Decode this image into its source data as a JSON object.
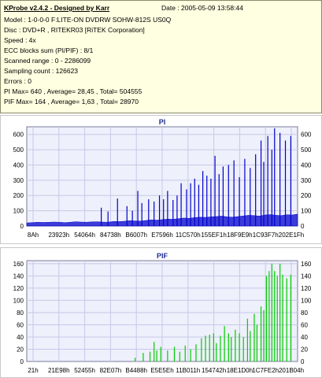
{
  "header": {
    "title": "KProbe v2.4.2 - Designed by Karr",
    "date_label": "Date : 2005-05-09 13:58:44"
  },
  "info_lines": [
    "Model : 1-0-0-0 F:LITE-ON DVDRW SOHW-812S  US0Q",
    "Disc : DVD+R , RITEKR03 [RiTEK Corporation]",
    "Speed : 4x",
    "ECC blocks sum (PI/PIF) : 8/1",
    "Scanned range : 0 - 2286099",
    "Sampling count : 126623",
    "Errors : 0",
    "PI Max= 640 , Average= 28,45 , Total= 504555",
    "PIF Max= 164 , Average= 1,63 , Total= 28970"
  ],
  "colors": {
    "info_bg": "#ffffe1",
    "plot_bg": "#eef0fb",
    "grid": "#c8c8e8",
    "pi_bar": "#0000cc",
    "pif_bar": "#00cc00",
    "title": "#1f2f8f"
  },
  "chart_data": [
    {
      "type": "bar",
      "title": "PI",
      "ylim": [
        0,
        650
      ],
      "y_ticks": [
        "0",
        "100",
        "200",
        "300",
        "400",
        "500",
        "600"
      ],
      "y_ticks_right": [
        "0",
        "100",
        "200",
        "300",
        "400",
        "500",
        "600"
      ],
      "x_tick_labels": [
        "8Ah",
        "23923h",
        "54064h",
        "84738h",
        "B6007h",
        "E7596h",
        "11C570h",
        "155EF1h",
        "18F9E9h",
        "1C93F7h",
        "202E1Fh"
      ],
      "grid": true,
      "baseline": [
        20,
        22,
        25,
        23,
        24,
        26,
        25,
        22,
        24,
        28,
        26,
        25,
        27,
        28,
        26,
        25,
        30,
        29,
        31,
        35,
        33,
        32,
        36,
        40,
        38,
        42,
        45,
        44,
        48,
        52,
        50,
        55,
        58,
        56,
        60,
        62,
        65,
        60,
        58,
        62,
        66,
        70,
        68,
        65,
        72,
        75,
        70,
        68,
        74,
        72,
        78
      ],
      "spikes": [
        {
          "pos": 0.275,
          "val": 120
        },
        {
          "pos": 0.3,
          "val": 95
        },
        {
          "pos": 0.335,
          "val": 180
        },
        {
          "pos": 0.37,
          "val": 130
        },
        {
          "pos": 0.39,
          "val": 100
        },
        {
          "pos": 0.41,
          "val": 230
        },
        {
          "pos": 0.425,
          "val": 150
        },
        {
          "pos": 0.45,
          "val": 175
        },
        {
          "pos": 0.47,
          "val": 160
        },
        {
          "pos": 0.49,
          "val": 200
        },
        {
          "pos": 0.505,
          "val": 175
        },
        {
          "pos": 0.52,
          "val": 230
        },
        {
          "pos": 0.54,
          "val": 170
        },
        {
          "pos": 0.555,
          "val": 200
        },
        {
          "pos": 0.57,
          "val": 280
        },
        {
          "pos": 0.59,
          "val": 240
        },
        {
          "pos": 0.605,
          "val": 280
        },
        {
          "pos": 0.62,
          "val": 310
        },
        {
          "pos": 0.635,
          "val": 270
        },
        {
          "pos": 0.65,
          "val": 360
        },
        {
          "pos": 0.665,
          "val": 330
        },
        {
          "pos": 0.68,
          "val": 310
        },
        {
          "pos": 0.695,
          "val": 460
        },
        {
          "pos": 0.71,
          "val": 340
        },
        {
          "pos": 0.725,
          "val": 390
        },
        {
          "pos": 0.745,
          "val": 400
        },
        {
          "pos": 0.765,
          "val": 430
        },
        {
          "pos": 0.785,
          "val": 320
        },
        {
          "pos": 0.805,
          "val": 440
        },
        {
          "pos": 0.825,
          "val": 380
        },
        {
          "pos": 0.845,
          "val": 470
        },
        {
          "pos": 0.865,
          "val": 560
        },
        {
          "pos": 0.875,
          "val": 420
        },
        {
          "pos": 0.89,
          "val": 590
        },
        {
          "pos": 0.905,
          "val": 500
        },
        {
          "pos": 0.915,
          "val": 640
        },
        {
          "pos": 0.935,
          "val": 610
        },
        {
          "pos": 0.955,
          "val": 560
        },
        {
          "pos": 0.975,
          "val": 590
        }
      ]
    },
    {
      "type": "bar",
      "title": "PIF",
      "ylim": [
        0,
        165
      ],
      "y_ticks": [
        "0",
        "20",
        "40",
        "60",
        "80",
        "100",
        "120",
        "140",
        "160"
      ],
      "y_ticks_right": [
        "0",
        "20",
        "40",
        "60",
        "80",
        "100",
        "120",
        "140",
        "160"
      ],
      "x_tick_labels": [
        "21h",
        "21E98h",
        "52455h",
        "82E07h",
        "B4488h",
        "E5E5Eh",
        "11B011h",
        "154742h",
        "18E1D0h",
        "1C7FE2h",
        "201B04h"
      ],
      "grid": true,
      "baseline": [],
      "spikes": [
        {
          "pos": 0.4,
          "val": 6
        },
        {
          "pos": 0.43,
          "val": 14
        },
        {
          "pos": 0.455,
          "val": 16
        },
        {
          "pos": 0.47,
          "val": 32
        },
        {
          "pos": 0.48,
          "val": 18
        },
        {
          "pos": 0.495,
          "val": 24
        },
        {
          "pos": 0.52,
          "val": 18
        },
        {
          "pos": 0.545,
          "val": 24
        },
        {
          "pos": 0.565,
          "val": 16
        },
        {
          "pos": 0.585,
          "val": 26
        },
        {
          "pos": 0.605,
          "val": 20
        },
        {
          "pos": 0.625,
          "val": 28
        },
        {
          "pos": 0.645,
          "val": 38
        },
        {
          "pos": 0.66,
          "val": 42
        },
        {
          "pos": 0.675,
          "val": 44
        },
        {
          "pos": 0.69,
          "val": 46
        },
        {
          "pos": 0.7,
          "val": 30
        },
        {
          "pos": 0.715,
          "val": 42
        },
        {
          "pos": 0.73,
          "val": 58
        },
        {
          "pos": 0.745,
          "val": 46
        },
        {
          "pos": 0.755,
          "val": 40
        },
        {
          "pos": 0.77,
          "val": 52
        },
        {
          "pos": 0.785,
          "val": 46
        },
        {
          "pos": 0.8,
          "val": 40
        },
        {
          "pos": 0.815,
          "val": 70
        },
        {
          "pos": 0.825,
          "val": 50
        },
        {
          "pos": 0.84,
          "val": 78
        },
        {
          "pos": 0.85,
          "val": 60
        },
        {
          "pos": 0.865,
          "val": 90
        },
        {
          "pos": 0.875,
          "val": 84
        },
        {
          "pos": 0.885,
          "val": 140
        },
        {
          "pos": 0.895,
          "val": 148
        },
        {
          "pos": 0.905,
          "val": 160
        },
        {
          "pos": 0.915,
          "val": 148
        },
        {
          "pos": 0.925,
          "val": 140
        },
        {
          "pos": 0.935,
          "val": 160
        },
        {
          "pos": 0.945,
          "val": 142
        },
        {
          "pos": 0.96,
          "val": 136
        },
        {
          "pos": 0.975,
          "val": 142
        }
      ]
    }
  ]
}
